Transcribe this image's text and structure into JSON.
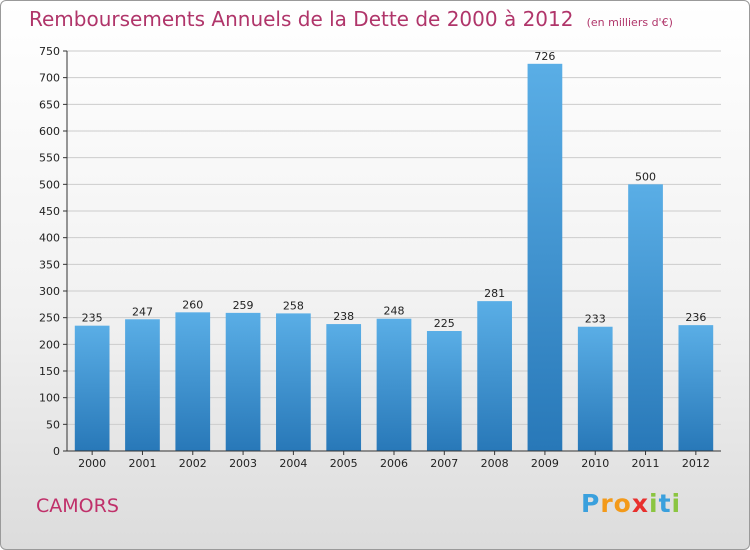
{
  "header": {
    "title": "Remboursements Annuels de la Dette de 2000 à 2012",
    "unit": "(en milliers d'€)"
  },
  "footer": {
    "commune": "CAMORS",
    "logo_letters": [
      {
        "ch": "P",
        "color": "#3aa0dd"
      },
      {
        "ch": "r",
        "color": "#f39a1a"
      },
      {
        "ch": "o",
        "color": "#f39a1a"
      },
      {
        "ch": "x",
        "color": "#e8302e"
      },
      {
        "ch": "i",
        "color": "#8bc541"
      },
      {
        "ch": "t",
        "color": "#3aa0dd"
      },
      {
        "ch": "i",
        "color": "#8bc541"
      }
    ]
  },
  "colors": {
    "bar_top": "#5aaee6",
    "bar_bottom": "#2878b8",
    "grid": "#cccccc",
    "title": "#b0356a"
  },
  "chart_data": {
    "type": "bar",
    "title": "Remboursements Annuels de la Dette de 2000 à 2012",
    "subtitle": "(en milliers d'€)",
    "categories": [
      "2000",
      "2001",
      "2002",
      "2003",
      "2004",
      "2005",
      "2006",
      "2007",
      "2008",
      "2009",
      "2010",
      "2011",
      "2012"
    ],
    "values": [
      235,
      247,
      260,
      259,
      258,
      238,
      248,
      225,
      281,
      726,
      233,
      500,
      236
    ],
    "ylim": [
      0,
      750
    ],
    "yticks": [
      0,
      50,
      100,
      150,
      200,
      250,
      300,
      350,
      400,
      450,
      500,
      550,
      600,
      650,
      700,
      750
    ],
    "grid": true,
    "legend": "none"
  }
}
